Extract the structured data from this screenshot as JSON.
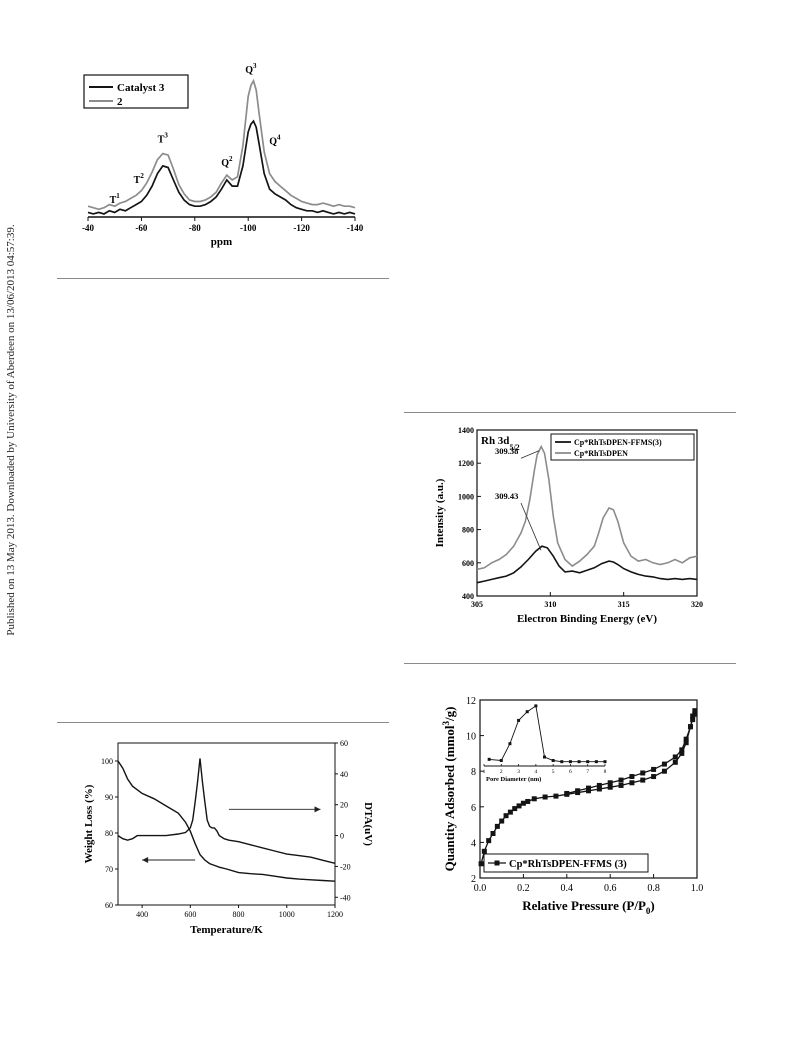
{
  "sidebar": {
    "text": "Published on 13 May 2013. Downloaded by University of Aberdeen on 13/06/2013 04:57:39."
  },
  "colors": {
    "dark": "#141414",
    "light": "#8c8c8c"
  },
  "chart_data": [
    {
      "id": "nmr",
      "type": "line",
      "xlabel": "ppm",
      "ylabel": "",
      "xlim": [
        -40,
        -140
      ],
      "xticks": [
        -40,
        -60,
        -80,
        -100,
        -120,
        -140
      ],
      "grid": false,
      "legend_position": "top-left",
      "series": [
        {
          "name": "Catalyst 3",
          "color": "#141414",
          "x": [
            -40,
            -42,
            -44,
            -46,
            -48,
            -50,
            -52,
            -54,
            -56,
            -58,
            -60,
            -62,
            -64,
            -66,
            -68,
            -70,
            -72,
            -74,
            -76,
            -78,
            -80,
            -82,
            -84,
            -86,
            -88,
            -90,
            -92,
            -94,
            -96,
            -98,
            -100,
            -101,
            -102,
            -103,
            -104,
            -106,
            -108,
            -110,
            -112,
            -114,
            -116,
            -118,
            -120,
            -122,
            -124,
            -126,
            -128,
            -130,
            -132,
            -134,
            -136,
            -138,
            -140
          ],
          "y": [
            3,
            2,
            3,
            2,
            4,
            3,
            5,
            4,
            6,
            8,
            10,
            14,
            20,
            28,
            33,
            32,
            24,
            16,
            11,
            8,
            7,
            7,
            8,
            10,
            13,
            18,
            24,
            20,
            20,
            33,
            55,
            60,
            62,
            58,
            48,
            28,
            18,
            15,
            13,
            11,
            8,
            6,
            5,
            4,
            4,
            3,
            4,
            3,
            2,
            3,
            2,
            3,
            2
          ]
        },
        {
          "name": "2",
          "color": "#8c8c8c",
          "x": [
            -40,
            -42,
            -44,
            -46,
            -48,
            -50,
            -52,
            -54,
            -56,
            -58,
            -60,
            -62,
            -64,
            -66,
            -68,
            -70,
            -72,
            -74,
            -76,
            -78,
            -80,
            -82,
            -84,
            -86,
            -88,
            -90,
            -92,
            -94,
            -96,
            -98,
            -100,
            -101,
            -102,
            -103,
            -104,
            -106,
            -108,
            -110,
            -112,
            -114,
            -116,
            -118,
            -120,
            -122,
            -124,
            -126,
            -128,
            -130,
            -132,
            -134,
            -136,
            -138,
            -140
          ],
          "y": [
            7,
            6,
            5,
            6,
            8,
            7,
            9,
            10,
            12,
            14,
            17,
            22,
            29,
            37,
            41,
            40,
            31,
            21,
            15,
            11,
            10,
            10,
            11,
            13,
            16,
            22,
            27,
            24,
            26,
            46,
            78,
            85,
            88,
            82,
            68,
            42,
            28,
            23,
            20,
            17,
            14,
            12,
            10,
            9,
            8,
            8,
            9,
            8,
            7,
            8,
            7,
            7,
            6
          ]
        }
      ],
      "annotations": [
        {
          "base": "T",
          "sup": "1",
          "x": -50,
          "y": 9
        },
        {
          "base": "T",
          "sup": "2",
          "x": -59,
          "y": 22
        },
        {
          "base": "T",
          "sup": "3",
          "x": -68,
          "y": 48
        },
        {
          "base": "Q",
          "sup": "2",
          "x": -92,
          "y": 33
        },
        {
          "base": "Q",
          "sup": "3",
          "x": -101,
          "y": 93
        },
        {
          "base": "Q",
          "sup": "4",
          "x": -110,
          "y": 47
        }
      ]
    },
    {
      "id": "xps",
      "type": "line",
      "title": "Rh 3d",
      "title_sub": "5/2",
      "xlabel": "Electron Binding Energy (eV)",
      "ylabel": "Intensity (a.u.)",
      "xlim": [
        305,
        320
      ],
      "ylim": [
        400,
        1400
      ],
      "xticks": [
        305,
        310,
        315,
        320
      ],
      "yticks": [
        400,
        600,
        800,
        1000,
        1200,
        1400
      ],
      "grid": false,
      "legend_position": "top-right",
      "series": [
        {
          "name": "Cp*RhTsDPEN-FFMS(3)",
          "color": "#141414",
          "x": [
            305,
            305.5,
            306,
            306.5,
            307,
            307.5,
            308,
            308.5,
            309,
            309.43,
            309.8,
            310.2,
            310.6,
            311,
            311.5,
            312,
            312.5,
            313,
            313.5,
            314,
            314.3,
            314.6,
            315,
            315.5,
            316,
            316.5,
            317,
            317.5,
            318,
            318.5,
            319,
            319.5,
            320
          ],
          "y": [
            480,
            490,
            500,
            510,
            520,
            540,
            575,
            620,
            670,
            700,
            690,
            640,
            580,
            545,
            550,
            540,
            555,
            570,
            595,
            610,
            605,
            590,
            565,
            545,
            530,
            520,
            515,
            505,
            500,
            505,
            500,
            505,
            500
          ]
        },
        {
          "name": "Cp*RhTsDPEN",
          "color": "#8c8c8c",
          "x": [
            305,
            305.5,
            306,
            306.5,
            307,
            307.5,
            308,
            308.3,
            308.6,
            308.9,
            309.1,
            309.38,
            309.6,
            309.9,
            310.2,
            310.5,
            311,
            311.5,
            312,
            312.5,
            313,
            313.3,
            313.6,
            314,
            314.3,
            314.6,
            315,
            315.5,
            316,
            316.5,
            317,
            317.5,
            318,
            318.5,
            319,
            319.5,
            320
          ],
          "y": [
            560,
            570,
            600,
            620,
            650,
            700,
            780,
            850,
            980,
            1150,
            1250,
            1300,
            1260,
            1100,
            880,
            720,
            620,
            580,
            610,
            650,
            700,
            780,
            870,
            930,
            920,
            850,
            720,
            640,
            610,
            620,
            600,
            590,
            600,
            620,
            600,
            630,
            640
          ]
        }
      ],
      "annotations": [
        {
          "text": "309.38",
          "x": 309.38,
          "y": 1300
        },
        {
          "text": "309.43",
          "x": 309.43,
          "y": 700
        }
      ]
    },
    {
      "id": "tga",
      "type": "line",
      "xlabel": "Temperature/K",
      "ylabel": "Weight Loss (%)",
      "y2label": "DTA(uV)",
      "xlim": [
        300,
        1200
      ],
      "ylim": [
        60,
        105
      ],
      "y2lim": [
        -45,
        60
      ],
      "xticks": [
        400,
        600,
        800,
        1000,
        1200
      ],
      "yticks": [
        60,
        70,
        80,
        90,
        100
      ],
      "y2ticks": [
        -40,
        -20,
        0,
        20,
        40,
        60
      ],
      "grid": false,
      "series": [
        {
          "name": "Weight Loss",
          "axis": "left",
          "color": "#141414",
          "x": [
            300,
            320,
            340,
            360,
            380,
            400,
            450,
            500,
            550,
            580,
            600,
            620,
            640,
            660,
            680,
            700,
            720,
            750,
            800,
            850,
            900,
            950,
            1000,
            1050,
            1100,
            1150,
            1200
          ],
          "y": [
            100,
            98,
            95,
            93,
            92,
            91,
            89.5,
            87.5,
            85.5,
            83,
            80.5,
            77,
            74,
            72.5,
            71.5,
            71,
            70.5,
            70,
            69,
            68.7,
            68.5,
            68,
            67.5,
            67.2,
            67,
            66.8,
            66.6
          ]
        },
        {
          "name": "DTA",
          "axis": "right",
          "color": "#141414",
          "x": [
            300,
            320,
            340,
            360,
            380,
            400,
            450,
            500,
            550,
            580,
            600,
            610,
            620,
            630,
            640,
            650,
            660,
            670,
            680,
            690,
            700,
            710,
            720,
            740,
            760,
            800,
            850,
            900,
            950,
            1000,
            1050,
            1100,
            1150,
            1200
          ],
          "y": [
            0,
            -2,
            -3,
            -2,
            0,
            0,
            0,
            0,
            1,
            2,
            5,
            10,
            22,
            35,
            50,
            35,
            22,
            10,
            6,
            5,
            5,
            3,
            0,
            -2,
            -3,
            -4,
            -6,
            -8,
            -10,
            -12,
            -13,
            -14,
            -16,
            -18
          ]
        }
      ]
    },
    {
      "id": "isotherm",
      "type": "line",
      "xlabel": "Relative Pressure (P/P0)",
      "ylabel": "Quantity Adsorbed (mmol3/g)",
      "xlim": [
        0.0,
        1.0
      ],
      "ylim": [
        2,
        12
      ],
      "xticks": [
        0.0,
        0.2,
        0.4,
        0.6,
        0.8,
        1.0
      ],
      "yticks": [
        2,
        4,
        6,
        8,
        10,
        12
      ],
      "grid": false,
      "legend_position": "bottom-left",
      "series": [
        {
          "name": "Cp*RhTsDPEN-FFMS (3)",
          "color": "#141414",
          "x": [
            0.005,
            0.02,
            0.04,
            0.06,
            0.08,
            0.1,
            0.12,
            0.14,
            0.16,
            0.18,
            0.2,
            0.22,
            0.25,
            0.3,
            0.35,
            0.4,
            0.45,
            0.5,
            0.55,
            0.6,
            0.65,
            0.7,
            0.75,
            0.8,
            0.85,
            0.9,
            0.93,
            0.95,
            0.97,
            0.98,
            0.99,
            0.99,
            0.98,
            0.97,
            0.95,
            0.93,
            0.9,
            0.85,
            0.8,
            0.75,
            0.7,
            0.65,
            0.6,
            0.55,
            0.5,
            0.45,
            0.4
          ],
          "y": [
            2.8,
            3.5,
            4.1,
            4.5,
            4.9,
            5.2,
            5.5,
            5.7,
            5.9,
            6.05,
            6.2,
            6.3,
            6.45,
            6.55,
            6.6,
            6.7,
            6.8,
            6.9,
            7.0,
            7.1,
            7.2,
            7.35,
            7.5,
            7.7,
            8.0,
            8.5,
            9.0,
            9.6,
            10.5,
            10.9,
            11.2,
            11.4,
            11.1,
            10.5,
            9.8,
            9.2,
            8.8,
            8.4,
            8.1,
            7.9,
            7.7,
            7.5,
            7.35,
            7.2,
            7.05,
            6.9,
            6.75
          ]
        }
      ]
    },
    {
      "id": "pore-inset",
      "type": "line",
      "xlabel": "Pore Diameter (nm)",
      "ylabel": "",
      "xlim": [
        1,
        8
      ],
      "xticks": [
        1,
        2,
        3,
        4,
        5,
        6,
        7,
        8
      ],
      "grid": false,
      "series": [
        {
          "name": "",
          "color": "#141414",
          "x": [
            1.3,
            2.0,
            2.5,
            3.0,
            3.5,
            4.0,
            4.5,
            5.0,
            5.5,
            6.0,
            6.5,
            7.0,
            7.5,
            8.0
          ],
          "y": [
            0.08,
            0.06,
            0.35,
            0.75,
            0.9,
            1.0,
            0.12,
            0.06,
            0.04,
            0.04,
            0.04,
            0.04,
            0.04,
            0.04
          ]
        }
      ]
    }
  ]
}
